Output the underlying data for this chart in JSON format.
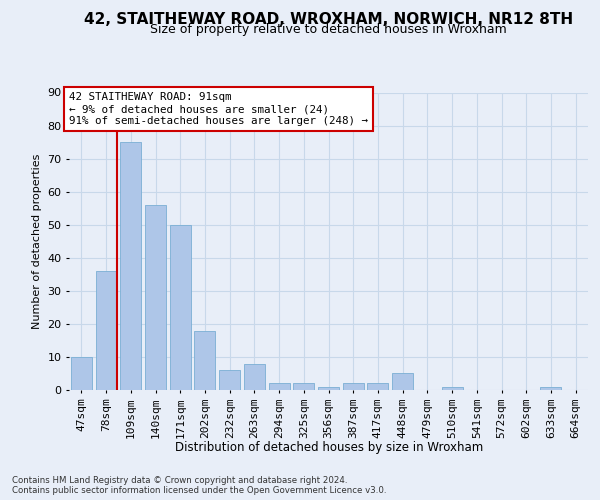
{
  "title1": "42, STAITHEWAY ROAD, WROXHAM, NORWICH, NR12 8TH",
  "title2": "Size of property relative to detached houses in Wroxham",
  "xlabel": "Distribution of detached houses by size in Wroxham",
  "ylabel": "Number of detached properties",
  "bin_labels": [
    "47sqm",
    "78sqm",
    "109sqm",
    "140sqm",
    "171sqm",
    "202sqm",
    "232sqm",
    "263sqm",
    "294sqm",
    "325sqm",
    "356sqm",
    "387sqm",
    "417sqm",
    "448sqm",
    "479sqm",
    "510sqm",
    "541sqm",
    "572sqm",
    "602sqm",
    "633sqm",
    "664sqm"
  ],
  "bar_values": [
    10,
    36,
    75,
    56,
    50,
    18,
    6,
    8,
    2,
    2,
    1,
    2,
    2,
    5,
    0,
    1,
    0,
    0,
    0,
    1,
    0
  ],
  "bar_color": "#aec6e8",
  "bar_edge_color": "#7aafd4",
  "grid_color": "#c8d8ea",
  "background_color": "#e8eef8",
  "red_line_bin_index": 1,
  "annotation_text": "42 STAITHEWAY ROAD: 91sqm\n← 9% of detached houses are smaller (24)\n91% of semi-detached houses are larger (248) →",
  "annotation_box_color": "#ffffff",
  "annotation_box_edge": "#cc0000",
  "red_line_color": "#cc0000",
  "footer_text": "Contains HM Land Registry data © Crown copyright and database right 2024.\nContains public sector information licensed under the Open Government Licence v3.0.",
  "ylim": [
    0,
    90
  ],
  "yticks": [
    0,
    10,
    20,
    30,
    40,
    50,
    60,
    70,
    80,
    90
  ],
  "title1_fontsize": 11,
  "title2_fontsize": 9
}
